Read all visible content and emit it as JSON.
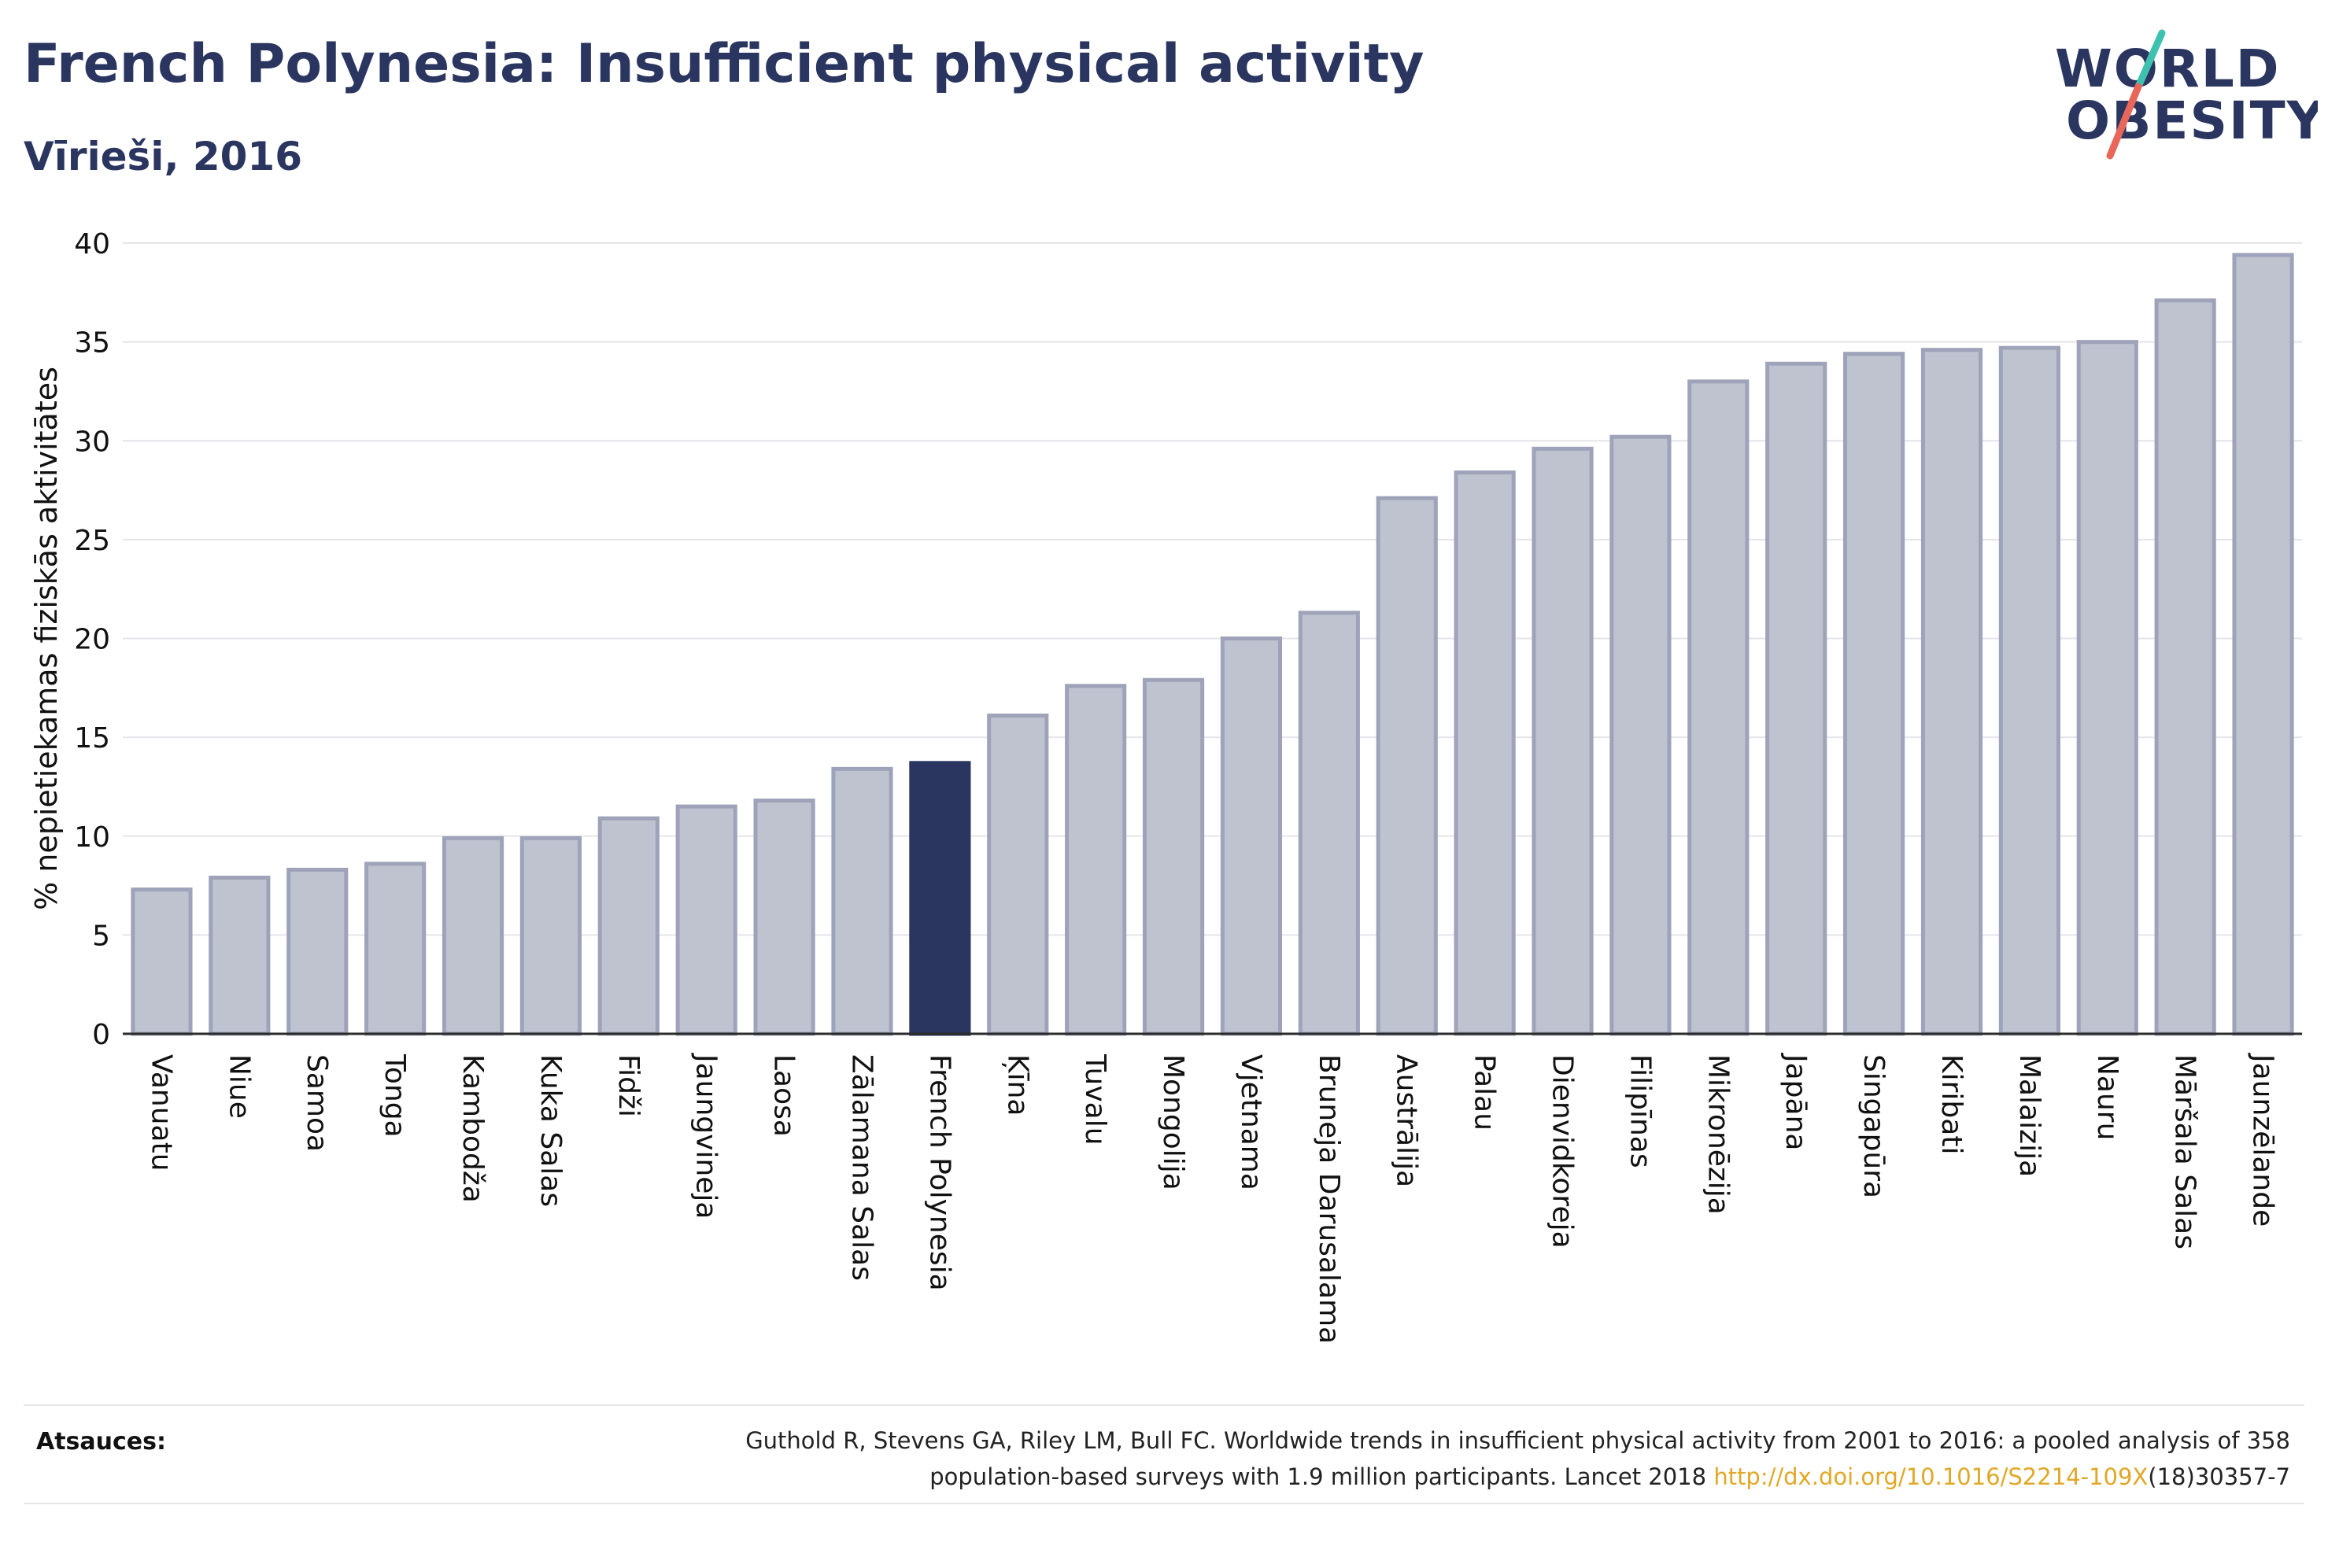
{
  "header": {
    "title": "French Polynesia: Insufficient physical activity",
    "subtitle": "Vīrieši, 2016"
  },
  "logo": {
    "line1": "WORLD",
    "line2": "OBESITY",
    "colors": {
      "text": "#2a3560",
      "slash_top": "#3fc1b0",
      "slash_bottom": "#e8675a"
    }
  },
  "chart_data": {
    "type": "bar",
    "ylabel": "% nepietiekamas fiziskās aktivitātes",
    "xlabel": "",
    "ylim": [
      0,
      40
    ],
    "yticks": [
      0,
      5,
      10,
      15,
      20,
      25,
      30,
      35,
      40
    ],
    "grid": true,
    "highlight": "French Polynesia",
    "colors": {
      "bar": "#bfc2cf",
      "bar_edge": "#9ea3b9",
      "highlight": "#2a3560",
      "grid": "#e5e5ea",
      "axis": "#2b2b2b"
    },
    "categories": [
      "Vanuatu",
      "Niue",
      "Samoa",
      "Tonga",
      "Kambodža",
      "Kuka Salas",
      "Fidži",
      "Jaungvineja",
      "Laosa",
      "Zālamana Salas",
      "French Polynesia",
      "Ķīna",
      "Tuvalu",
      "Mongolija",
      "Vjetnama",
      "Bruneja Darusalama",
      "Austrālija",
      "Palau",
      "Dienvidkoreja",
      "Filipīnas",
      "Mikronēzija",
      "Japāna",
      "Singapūra",
      "Kiribati",
      "Malaizija",
      "Nauru",
      "Māršala Salas",
      "Jaunzēlande"
    ],
    "values": [
      7.3,
      7.9,
      8.3,
      8.6,
      9.9,
      9.9,
      10.9,
      11.5,
      11.8,
      13.4,
      13.7,
      16.1,
      17.6,
      17.9,
      20.0,
      21.3,
      27.1,
      28.4,
      29.6,
      30.2,
      33.0,
      33.9,
      34.4,
      34.6,
      34.7,
      35.0,
      37.1,
      39.4
    ]
  },
  "sources": {
    "label": "Atsauces:",
    "text1": "Guthold R, Stevens GA, Riley LM, Bull FC. Worldwide trends in insufficient physical activity from 2001 to 2016: a pooled analysis of 358",
    "text2_pre": "population-based surveys with 1.9 million participants. Lancet 2018 ",
    "link": "http://dx.doi.org/10.1016/S2214-109X",
    "text2_post": "(18)30357-7"
  }
}
